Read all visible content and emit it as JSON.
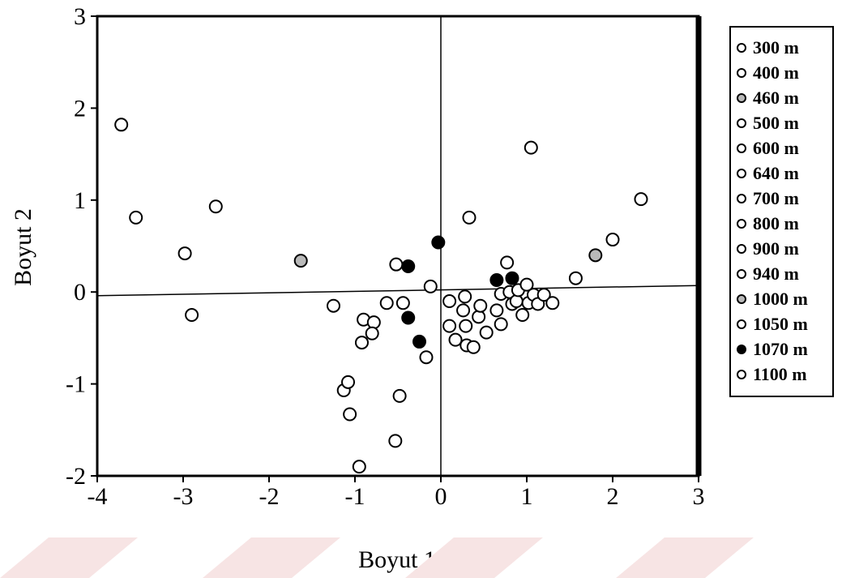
{
  "chart_data": {
    "type": "scatter",
    "xlabel": "Boyut 1",
    "ylabel": "Boyut 2",
    "xlim": [
      -4,
      3
    ],
    "ylim": [
      -2,
      3
    ],
    "x_ticks": [
      "-4",
      "-3",
      "-2",
      "-1",
      "0",
      "1",
      "2",
      "3"
    ],
    "y_ticks": [
      "-2",
      "-1",
      "0",
      "1",
      "2",
      "3"
    ],
    "grid": false,
    "legend_position": "right",
    "legend": [
      {
        "label": "300 m",
        "marker": "open-circle"
      },
      {
        "label": "400 m",
        "marker": "open-circle"
      },
      {
        "label": "460 m",
        "marker": "shaded-circle"
      },
      {
        "label": "500 m",
        "marker": "open-circle"
      },
      {
        "label": "600 m",
        "marker": "open-circle"
      },
      {
        "label": "640 m",
        "marker": "open-circle"
      },
      {
        "label": "700 m",
        "marker": "open-circle"
      },
      {
        "label": "800 m",
        "marker": "open-circle"
      },
      {
        "label": "900 m",
        "marker": "open-circle"
      },
      {
        "label": "940 m",
        "marker": "open-circle"
      },
      {
        "label": "1000 m",
        "marker": "shaded-circle"
      },
      {
        "label": "1050 m",
        "marker": "open-circle"
      },
      {
        "label": "1070 m",
        "marker": "filled-circle"
      },
      {
        "label": "1100 m",
        "marker": "open-circle"
      }
    ],
    "series": [
      {
        "marker": "open-circle",
        "points": [
          [
            -3.72,
            1.82
          ],
          [
            -3.55,
            0.81
          ],
          [
            -2.62,
            0.93
          ],
          [
            -2.98,
            0.42
          ],
          [
            -2.9,
            -0.25
          ],
          [
            -1.25,
            -0.15
          ],
          [
            -0.9,
            -0.3
          ],
          [
            -0.78,
            -0.33
          ],
          [
            -0.92,
            -0.55
          ],
          [
            -0.8,
            -0.45
          ],
          [
            -0.63,
            -0.12
          ],
          [
            -0.52,
            0.3
          ],
          [
            -0.44,
            -0.12
          ],
          [
            -0.12,
            0.06
          ],
          [
            -0.17,
            -0.71
          ],
          [
            -1.13,
            -1.07
          ],
          [
            -1.08,
            -0.98
          ],
          [
            -1.06,
            -1.33
          ],
          [
            -0.48,
            -1.13
          ],
          [
            -0.53,
            -1.62
          ],
          [
            -0.95,
            -1.9
          ],
          [
            0.1,
            -0.1
          ],
          [
            0.1,
            -0.37
          ],
          [
            0.17,
            -0.52
          ],
          [
            0.26,
            -0.2
          ],
          [
            0.28,
            -0.05
          ],
          [
            0.29,
            -0.37
          ],
          [
            0.3,
            -0.58
          ],
          [
            0.38,
            -0.6
          ],
          [
            0.44,
            -0.27
          ],
          [
            0.46,
            -0.15
          ],
          [
            0.53,
            -0.44
          ],
          [
            0.65,
            -0.2
          ],
          [
            0.7,
            -0.35
          ],
          [
            0.7,
            -0.02
          ],
          [
            0.77,
            0.32
          ],
          [
            0.8,
            0.0
          ],
          [
            0.83,
            -0.13
          ],
          [
            0.88,
            -0.1
          ],
          [
            0.9,
            0.02
          ],
          [
            0.95,
            -0.25
          ],
          [
            1.0,
            0.08
          ],
          [
            1.02,
            -0.12
          ],
          [
            1.08,
            -0.03
          ],
          [
            1.13,
            -0.13
          ],
          [
            1.2,
            -0.03
          ],
          [
            1.3,
            -0.12
          ],
          [
            0.33,
            0.81
          ],
          [
            1.05,
            1.57
          ],
          [
            1.57,
            0.15
          ],
          [
            2.0,
            0.57
          ],
          [
            2.33,
            1.01
          ]
        ]
      },
      {
        "marker": "shaded-circle",
        "points": [
          [
            -1.63,
            0.34
          ],
          [
            1.8,
            0.4
          ]
        ]
      },
      {
        "marker": "filled-circle",
        "points": [
          [
            -0.03,
            0.54
          ],
          [
            -0.38,
            0.28
          ],
          [
            -0.38,
            -0.28
          ],
          [
            -0.25,
            -0.54
          ],
          [
            0.65,
            0.13
          ],
          [
            0.83,
            0.15
          ]
        ]
      }
    ]
  }
}
